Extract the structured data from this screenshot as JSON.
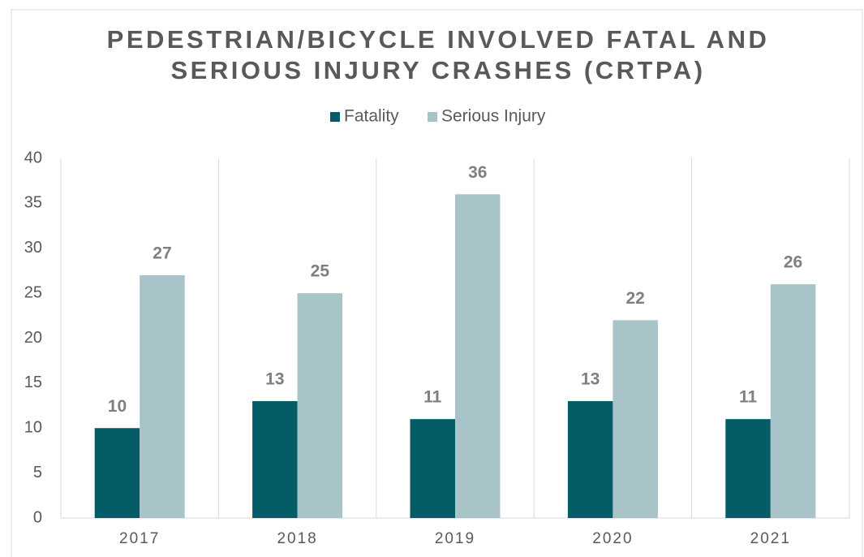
{
  "chart_data": {
    "type": "bar",
    "title": [
      "PEDESTRIAN/BICYCLE INVOLVED FATAL AND",
      "SERIOUS INJURY CRASHES (CRTPA)"
    ],
    "categories": [
      "2017",
      "2018",
      "2019",
      "2020",
      "2021"
    ],
    "series": [
      {
        "name": "Fatality",
        "color": "#045c66",
        "values": [
          10,
          13,
          11,
          13,
          11
        ]
      },
      {
        "name": "Serious Injury",
        "color": "#a9c4c9",
        "values": [
          27,
          25,
          36,
          22,
          26
        ]
      }
    ],
    "ylim": [
      0,
      40
    ],
    "yticks": [
      0,
      5,
      10,
      15,
      20,
      25,
      30,
      35,
      40
    ],
    "legend": "top",
    "grid": false
  }
}
